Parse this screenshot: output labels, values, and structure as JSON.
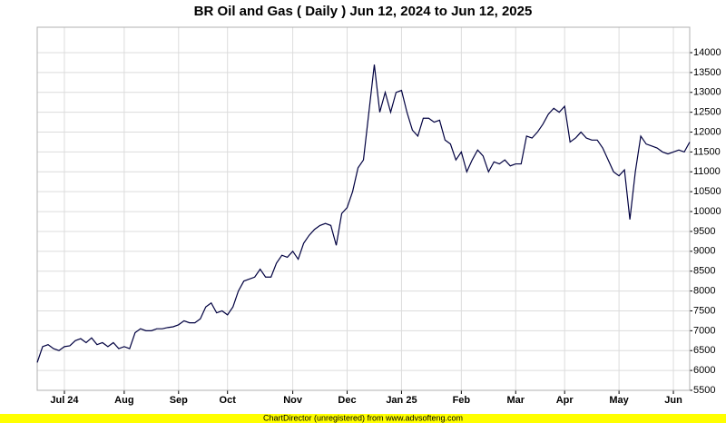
{
  "chart_data": {
    "type": "line",
    "title": "BR Oil and Gas ( Daily ) Jun 12, 2024 to Jun 12, 2025",
    "footer": "ChartDirector (unregistered) from www.advsofteng.com",
    "categories": [
      null,
      null,
      null,
      null,
      null,
      "Jul 24",
      null,
      null,
      null,
      null,
      null,
      null,
      null,
      null,
      null,
      null,
      "Aug",
      null,
      null,
      null,
      null,
      null,
      null,
      null,
      null,
      null,
      "Sep",
      null,
      null,
      null,
      null,
      null,
      null,
      null,
      null,
      "Oct",
      null,
      null,
      null,
      null,
      null,
      null,
      null,
      null,
      null,
      null,
      null,
      "Nov",
      null,
      null,
      null,
      null,
      null,
      null,
      null,
      null,
      null,
      "Dec",
      null,
      null,
      null,
      null,
      null,
      null,
      null,
      null,
      null,
      "Jan 25",
      null,
      null,
      null,
      null,
      null,
      null,
      null,
      null,
      null,
      null,
      "Feb",
      null,
      null,
      null,
      null,
      null,
      null,
      null,
      null,
      null,
      "Mar",
      null,
      null,
      null,
      null,
      null,
      null,
      null,
      null,
      "Apr",
      null,
      null,
      null,
      null,
      null,
      null,
      null,
      null,
      null,
      "May",
      null,
      null,
      null,
      null,
      null,
      null,
      null,
      null,
      null,
      "Jun",
      null,
      null,
      null
    ],
    "series": [
      {
        "name": "BR Oil and Gas",
        "color": "#000040",
        "values": [
          6200,
          6600,
          6650,
          6550,
          6500,
          6600,
          6620,
          6750,
          6800,
          6700,
          6820,
          6650,
          6700,
          6600,
          6700,
          6550,
          6600,
          6550,
          6950,
          7050,
          7000,
          7000,
          7050,
          7050,
          7080,
          7100,
          7150,
          7250,
          7200,
          7200,
          7300,
          7600,
          7700,
          7450,
          7500,
          7400,
          7600,
          8000,
          8250,
          8300,
          8350,
          8550,
          8350,
          8350,
          8700,
          8900,
          8850,
          9000,
          8800,
          9200,
          9400,
          9550,
          9650,
          9700,
          9650,
          9150,
          9950,
          10100,
          10500,
          11100,
          11300,
          12500,
          13700,
          12500,
          13000,
          12500,
          13000,
          13050,
          12500,
          12050,
          11900,
          12350,
          12350,
          12250,
          12300,
          11800,
          11700,
          11300,
          11500,
          11000,
          11300,
          11550,
          11400,
          11000,
          11250,
          11200,
          11300,
          11150,
          11200,
          11200,
          11900,
          11850,
          12000,
          12200,
          12450,
          12600,
          12500,
          12650,
          11750,
          11850,
          12000,
          11850,
          11800,
          11800,
          11600,
          11300,
          11000,
          10900,
          11050,
          9800,
          11000,
          11900,
          11700,
          11650,
          11600,
          11500,
          11450,
          11500,
          11550,
          11500,
          11750
        ]
      }
    ],
    "ylim": [
      5500,
      14640
    ],
    "yticks": [
      5500,
      6000,
      6500,
      7000,
      7500,
      8000,
      8500,
      9000,
      9500,
      10000,
      10500,
      11000,
      11500,
      12000,
      12500,
      13000,
      13500,
      14000
    ],
    "grid": true
  }
}
